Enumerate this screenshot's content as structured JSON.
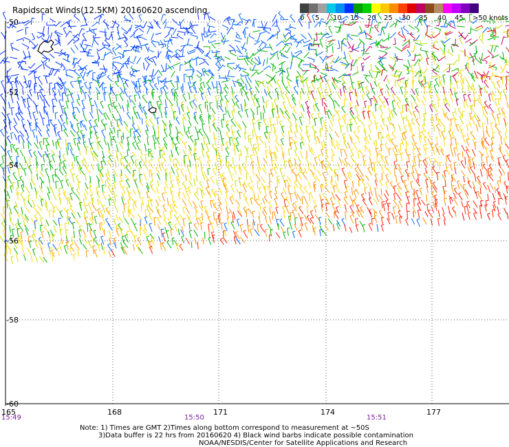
{
  "title": "Rapidscat Winds(12.5KM) 20160620 ascending",
  "scale": {
    "colors": [
      "#404040",
      "#707070",
      "#a0a0a0",
      "#00c8e6",
      "#0090f0",
      "#0030ff",
      "#00a000",
      "#00d000",
      "#ffff00",
      "#ffc800",
      "#ff8c00",
      "#ff4000",
      "#e00000",
      "#c00060",
      "#8c4a1e",
      "#b48c64",
      "#ff00ff",
      "#c000ff",
      "#8000c0",
      "#400080"
    ],
    "labels": [
      "0",
      "5",
      "10",
      "15",
      "20",
      "25",
      "30",
      "35",
      "40",
      "45",
      ">50 knots"
    ]
  },
  "axes": {
    "lon_ticks": [
      "165",
      "168",
      "171",
      "174",
      "177"
    ],
    "lat_ticks": [
      "-50",
      "-52",
      "-54",
      "-56",
      "-58",
      "-60"
    ],
    "times": [
      "15:49",
      "15:50",
      "15:51"
    ]
  },
  "notes": [
    "Note: 1) Times are GMT 2)Times along bottom correspond to measurement at ~50S",
    "3)Data buffer is 22 hrs from 20160620 4) Black wind barbs indicate possible contamination",
    "NOAA/NESDIS/Center for Satellite Applications and Research"
  ]
}
